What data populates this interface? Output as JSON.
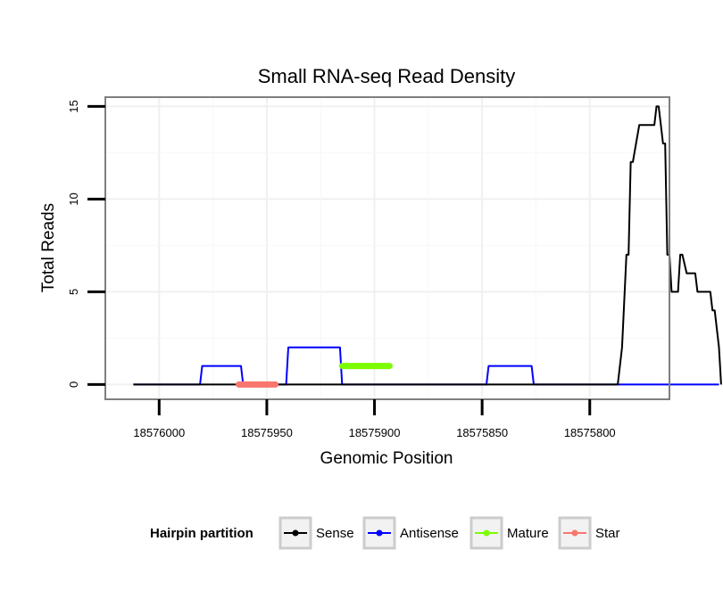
{
  "chart_data": {
    "type": "line",
    "title": "Small RNA-seq Read Density",
    "xlabel": "Genomic Position",
    "ylabel": "Total Reads",
    "xlim": [
      18576025,
      18575763
    ],
    "ylim": [
      -0.8,
      15.5
    ],
    "x_reversed": true,
    "x_ticks": [
      18576000,
      18575950,
      18575900,
      18575850,
      18575800
    ],
    "x_tick_labels": [
      "18576000",
      "18575950",
      "18575900",
      "18575850",
      "18575800"
    ],
    "y_ticks": [
      0,
      5,
      10,
      15
    ],
    "y_tick_labels": [
      "0",
      "5",
      "10",
      "15"
    ],
    "grid": true,
    "legend": {
      "title": "Hairpin partition",
      "position": "bottom",
      "entries": [
        {
          "label": "Sense",
          "color": "#000000"
        },
        {
          "label": "Antisense",
          "color": "#0000ff"
        },
        {
          "label": "Mature",
          "color": "#7cfc00"
        },
        {
          "label": "Star",
          "color": "#f8766d"
        }
      ]
    },
    "series": [
      {
        "name": "Sense",
        "color": "#000000",
        "x": [
          18576012,
          18575787,
          18575785,
          18575783,
          18575782,
          18575781,
          18575780,
          18575777,
          18575776,
          18575775,
          18575770,
          18575769,
          18575768,
          18575767,
          18575766,
          18575765,
          18575764,
          18575763,
          18575762,
          18575761,
          18575759,
          18575758,
          18575757,
          18575755,
          18575751,
          18575750,
          18575749,
          18575747,
          18575744,
          18575743,
          18575742,
          18575740,
          18575739
        ],
        "values": [
          0,
          0,
          2,
          7,
          7,
          12,
          12,
          14,
          14,
          14,
          14,
          15,
          15,
          14,
          13,
          13,
          7,
          7,
          5,
          5,
          5,
          7,
          7,
          6,
          6,
          5,
          5,
          5,
          5,
          4,
          4,
          2,
          0
        ]
      },
      {
        "name": "Antisense",
        "color": "#0000ff",
        "x": [
          18576012,
          18575981,
          18575980,
          18575963,
          18575962,
          18575961,
          18575960,
          18575941,
          18575940,
          18575939,
          18575916,
          18575915,
          18575848,
          18575847,
          18575827,
          18575826,
          18575740
        ],
        "values": [
          0,
          0,
          1,
          1,
          1,
          0,
          0,
          0,
          2,
          2,
          2,
          0,
          0,
          1,
          1,
          0,
          0
        ]
      }
    ],
    "segments": [
      {
        "name": "Mature",
        "color": "#7cfc00",
        "x_start": 18575915,
        "x_end": 18575893,
        "y": 1
      },
      {
        "name": "Star",
        "color": "#f8766d",
        "x_start": 18575963,
        "x_end": 18575946,
        "y": 0
      }
    ]
  }
}
